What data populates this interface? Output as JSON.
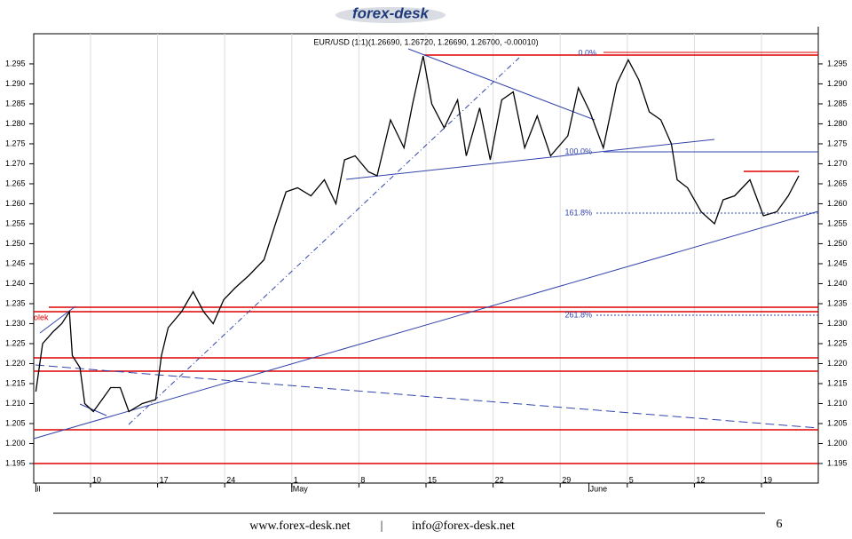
{
  "header": {
    "logo": "forex-desk"
  },
  "chart_data": {
    "type": "line",
    "title": "EUR/USD (1:1)(1.26690, 1.26720, 1.26690, 1.26700, -0.00010)",
    "annotations": [
      "0.0%",
      "100.0%",
      "161.8%",
      "261.8%",
      "olek"
    ],
    "months": [
      {
        "value": 4.3,
        "label": "il"
      },
      {
        "value": 31,
        "label": "May"
      },
      {
        "value": 62,
        "label": "June"
      }
    ],
    "x": [
      4.3,
      5.0,
      6.1,
      7.0,
      7.8,
      8.1,
      8.9,
      9.4,
      10.3,
      11.2,
      12.1,
      13.1,
      14.0,
      15.4,
      16.8,
      17.4,
      18.1,
      19.5,
      20.7,
      21.8,
      22.8,
      23.9,
      25.1,
      26.5,
      28.1,
      29.3,
      30.4,
      31.6,
      33.0,
      34.4,
      35.6,
      36.5,
      37.6,
      39.0,
      39.9,
      41.3,
      42.7,
      43.6,
      44.7,
      45.6,
      46.9,
      48.3,
      49.2,
      50.6,
      51.7,
      52.9,
      54.1,
      55.3,
      56.6,
      58.0,
      59.8,
      60.9,
      62.1,
      63.5,
      64.9,
      66.1,
      67.2,
      68.3,
      69.5,
      70.6,
      71.2,
      72.3,
      73.7,
      75.1,
      76.0,
      77.2,
      78.8,
      80.2,
      81.6,
      82.8,
      83.9
    ],
    "series": [
      {
        "name": "EUR/USD",
        "color": "#000000",
        "values": [
          1.213,
          1.225,
          1.228,
          1.23,
          1.233,
          1.222,
          1.219,
          1.21,
          1.208,
          1.211,
          1.214,
          1.214,
          1.208,
          1.21,
          1.211,
          1.222,
          1.229,
          1.233,
          1.238,
          1.233,
          1.23,
          1.236,
          1.239,
          1.242,
          1.246,
          1.255,
          1.263,
          1.264,
          1.262,
          1.266,
          1.26,
          1.271,
          1.272,
          1.268,
          1.267,
          1.281,
          1.274,
          1.285,
          1.297,
          1.285,
          1.279,
          1.286,
          1.272,
          1.284,
          1.271,
          1.286,
          1.288,
          1.274,
          1.282,
          1.272,
          1.277,
          1.289,
          1.283,
          1.274,
          1.29,
          1.296,
          1.291,
          1.283,
          1.281,
          1.275,
          1.266,
          1.264,
          1.258,
          1.255,
          1.261,
          1.262,
          1.266,
          1.257,
          1.258,
          1.262,
          1.267
        ]
      }
    ],
    "xlim": [
      4.26,
      85.74
    ],
    "xticks": [
      10,
      17,
      24,
      {
        "value": 31,
        "label": "1"
      },
      {
        "value": 38,
        "label": "8"
      },
      {
        "value": 45,
        "label": "15"
      },
      {
        "value": 52,
        "label": "22"
      },
      {
        "value": 59,
        "label": "29"
      },
      {
        "value": 66,
        "label": "5"
      },
      {
        "value": 73,
        "label": "12"
      },
      {
        "value": 80,
        "label": "19"
      }
    ],
    "ylim": [
      1.191,
      1.3021
    ],
    "yticks": [
      1.195,
      {
        "value": 1.2,
        "label": "1.200"
      },
      1.205,
      {
        "value": 1.21,
        "label": "1.210"
      },
      1.215,
      {
        "value": 1.22,
        "label": "1.220"
      },
      1.225,
      {
        "value": 1.23,
        "label": "1.230"
      },
      1.235,
      {
        "value": 1.24,
        "label": "1.240"
      },
      1.245,
      {
        "value": 1.25,
        "label": "1.250"
      },
      1.255,
      {
        "value": 1.26,
        "label": "1.260"
      },
      1.265,
      {
        "value": 1.27,
        "label": "1.270"
      },
      1.275,
      {
        "value": 1.28,
        "label": "1.280"
      },
      1.285,
      {
        "value": 1.29,
        "label": "1.290"
      },
      1.295
    ],
    "grid": "x"
  },
  "footer": {
    "website": "www.forex-desk.net",
    "separator": "|",
    "email": "info@forex-desk.net",
    "page": "6"
  }
}
